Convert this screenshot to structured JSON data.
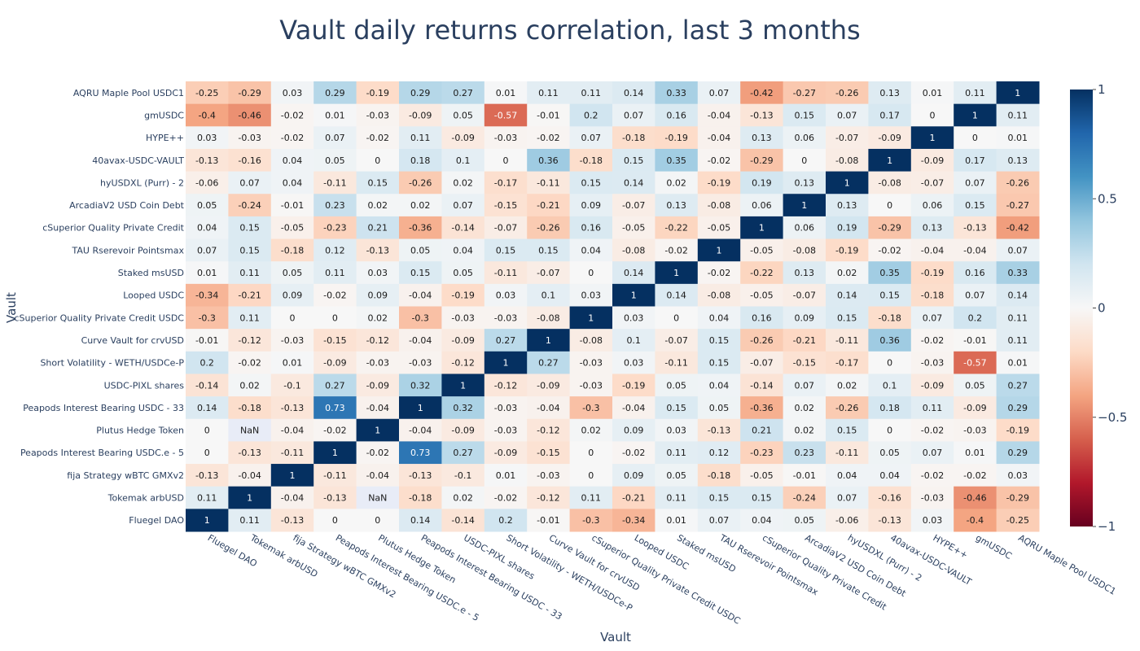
{
  "chart_data": {
    "type": "heatmap",
    "title": "Vault daily returns correlation, last 3 months",
    "xlabel": "Vault",
    "ylabel": "Vault",
    "x_categories": [
      "Fluegel DAO",
      "Tokemak arbUSD",
      "fija Strategy wBTC GMXv2",
      "Peapods Interest Bearing USDC.e - 5",
      "Plutus Hedge Token",
      "Peapods Interest Bearing USDC - 33",
      "USDC-PIXL shares",
      "Short Volatility - WETH/USDCe-P",
      "Curve Vault for crvUSD",
      "cSuperior Quality Private Credit USDC",
      "Looped USDC",
      "Staked msUSD",
      "TAU Rserevoir Pointsmax",
      "cSuperior Quality Private Credit",
      "ArcadiaV2 USD Coin Debt",
      "hyUSDXL (Purr) - 2",
      "40avax-USDC-VAULT",
      "HYPE++",
      "gmUSDC",
      "AQRU Maple Pool USDC1"
    ],
    "y_categories_top_to_bottom": [
      "AQRU Maple Pool USDC1",
      "gmUSDC",
      "HYPE++",
      "40avax-USDC-VAULT",
      "hyUSDXL (Purr) - 2",
      "ArcadiaV2 USD Coin Debt",
      "cSuperior Quality Private Credit",
      "TAU Rserevoir Pointsmax",
      "Staked msUSD",
      "Looped USDC",
      "cSuperior Quality Private Credit USDC",
      "Curve Vault for crvUSD",
      "Short Volatility - WETH/USDCe-P",
      "USDC-PIXL shares",
      "Peapods Interest Bearing USDC - 33",
      "Plutus Hedge Token",
      "Peapods Interest Bearing USDC.e - 5",
      "fija Strategy wBTC GMXv2",
      "Tokemak arbUSD",
      "Fluegel DAO"
    ],
    "values": [
      [
        -0.25,
        -0.29,
        0.03,
        0.29,
        -0.19,
        0.29,
        0.27,
        0.01,
        0.11,
        0.11,
        0.14,
        0.33,
        0.07,
        -0.42,
        -0.27,
        -0.26,
        0.13,
        0.01,
        0.11,
        1
      ],
      [
        -0.4,
        -0.46,
        -0.02,
        0.01,
        -0.03,
        -0.09,
        0.05,
        -0.57,
        -0.01,
        0.2,
        0.07,
        0.16,
        -0.04,
        -0.13,
        0.15,
        0.07,
        0.17,
        0,
        1,
        0.11
      ],
      [
        0.03,
        -0.03,
        -0.02,
        0.07,
        -0.02,
        0.11,
        -0.09,
        -0.03,
        -0.02,
        0.07,
        -0.18,
        -0.19,
        -0.04,
        0.13,
        0.06,
        -0.07,
        -0.09,
        1,
        0,
        0.01
      ],
      [
        -0.13,
        -0.16,
        0.04,
        0.05,
        0,
        0.18,
        0.1,
        0,
        0.36,
        -0.18,
        0.15,
        0.35,
        -0.02,
        -0.29,
        0,
        -0.08,
        1,
        -0.09,
        0.17,
        0.13
      ],
      [
        -0.06,
        0.07,
        0.04,
        -0.11,
        0.15,
        -0.26,
        0.02,
        -0.17,
        -0.11,
        0.15,
        0.14,
        0.02,
        -0.19,
        0.19,
        0.13,
        1,
        -0.08,
        -0.07,
        0.07,
        -0.26
      ],
      [
        0.05,
        -0.24,
        -0.01,
        0.23,
        0.02,
        0.02,
        0.07,
        -0.15,
        -0.21,
        0.09,
        -0.07,
        0.13,
        -0.08,
        0.06,
        1,
        0.13,
        0,
        0.06,
        0.15,
        -0.27
      ],
      [
        0.04,
        0.15,
        -0.05,
        -0.23,
        0.21,
        -0.36,
        -0.14,
        -0.07,
        -0.26,
        0.16,
        -0.05,
        -0.22,
        -0.05,
        1,
        0.06,
        0.19,
        -0.29,
        0.13,
        -0.13,
        -0.42
      ],
      [
        0.07,
        0.15,
        -0.18,
        0.12,
        -0.13,
        0.05,
        0.04,
        0.15,
        0.15,
        0.04,
        -0.08,
        -0.02,
        1,
        -0.05,
        -0.08,
        -0.19,
        -0.02,
        -0.04,
        -0.04,
        0.07
      ],
      [
        0.01,
        0.11,
        0.05,
        0.11,
        0.03,
        0.15,
        0.05,
        -0.11,
        -0.07,
        0,
        0.14,
        1,
        -0.02,
        -0.22,
        0.13,
        0.02,
        0.35,
        -0.19,
        0.16,
        0.33
      ],
      [
        -0.34,
        -0.21,
        0.09,
        -0.02,
        0.09,
        -0.04,
        -0.19,
        0.03,
        0.1,
        0.03,
        1,
        0.14,
        -0.08,
        -0.05,
        -0.07,
        0.14,
        0.15,
        -0.18,
        0.07,
        0.14
      ],
      [
        -0.3,
        0.11,
        0,
        0,
        0.02,
        -0.3,
        -0.03,
        -0.03,
        -0.08,
        1,
        0.03,
        0,
        0.04,
        0.16,
        0.09,
        0.15,
        -0.18,
        0.07,
        0.2,
        0.11
      ],
      [
        -0.01,
        -0.12,
        -0.03,
        -0.15,
        -0.12,
        -0.04,
        -0.09,
        0.27,
        1,
        -0.08,
        0.1,
        -0.07,
        0.15,
        -0.26,
        -0.21,
        -0.11,
        0.36,
        -0.02,
        -0.01,
        0.11
      ],
      [
        0.2,
        -0.02,
        0.01,
        -0.09,
        -0.03,
        -0.03,
        -0.12,
        1,
        0.27,
        -0.03,
        0.03,
        -0.11,
        0.15,
        -0.07,
        -0.15,
        -0.17,
        0,
        -0.03,
        -0.57,
        0.01
      ],
      [
        -0.14,
        0.02,
        -0.1,
        0.27,
        -0.09,
        0.32,
        1,
        -0.12,
        -0.09,
        -0.03,
        -0.19,
        0.05,
        0.04,
        -0.14,
        0.07,
        0.02,
        0.1,
        -0.09,
        0.05,
        0.27
      ],
      [
        0.14,
        -0.18,
        -0.13,
        0.73,
        -0.04,
        1,
        0.32,
        -0.03,
        -0.04,
        -0.3,
        -0.04,
        0.15,
        0.05,
        -0.36,
        0.02,
        -0.26,
        0.18,
        0.11,
        -0.09,
        0.29
      ],
      [
        0,
        "NaN",
        -0.04,
        -0.02,
        1,
        -0.04,
        -0.09,
        -0.03,
        -0.12,
        0.02,
        0.09,
        0.03,
        -0.13,
        0.21,
        0.02,
        0.15,
        0,
        -0.02,
        -0.03,
        -0.19
      ],
      [
        0,
        -0.13,
        -0.11,
        1,
        -0.02,
        0.73,
        0.27,
        -0.09,
        -0.15,
        0,
        -0.02,
        0.11,
        0.12,
        -0.23,
        0.23,
        -0.11,
        0.05,
        0.07,
        0.01,
        0.29
      ],
      [
        -0.13,
        -0.04,
        1,
        -0.11,
        -0.04,
        -0.13,
        -0.1,
        0.01,
        -0.03,
        0,
        0.09,
        0.05,
        -0.18,
        -0.05,
        -0.01,
        0.04,
        0.04,
        -0.02,
        -0.02,
        0.03
      ],
      [
        0.11,
        1,
        -0.04,
        -0.13,
        "NaN",
        -0.18,
        0.02,
        -0.02,
        -0.12,
        0.11,
        -0.21,
        0.11,
        0.15,
        0.15,
        -0.24,
        0.07,
        -0.16,
        -0.03,
        -0.46,
        -0.29
      ],
      [
        1,
        0.11,
        -0.13,
        0,
        0,
        0.14,
        -0.14,
        0.2,
        -0.01,
        -0.3,
        -0.34,
        0.01,
        0.07,
        0.04,
        0.05,
        -0.06,
        -0.13,
        0.03,
        -0.4,
        -0.25
      ]
    ],
    "zrange": [
      -1,
      1
    ],
    "colorscale": "RdBu",
    "colorbar_ticks": [
      1,
      0.5,
      0,
      -0.5,
      -1
    ],
    "colorbar_tick_labels": [
      "1",
      "0.5",
      "0",
      "−0.5",
      "−1"
    ],
    "nan_color": "#e8ecf7"
  }
}
